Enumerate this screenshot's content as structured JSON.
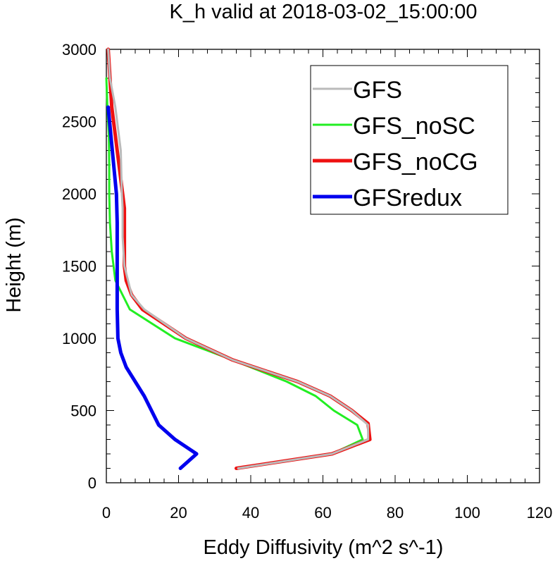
{
  "chart_data": {
    "type": "line",
    "title": "K_h valid at 2018-03-02_15:00:00",
    "xlabel": "Eddy Diffusivity (m^2 s^-1)",
    "ylabel": "Height (m)",
    "xlim": [
      0,
      120
    ],
    "ylim": [
      0,
      3000
    ],
    "xticks": [
      "0",
      "20",
      "40",
      "60",
      "80",
      "100",
      "120"
    ],
    "yticks": [
      "0",
      "500",
      "1000",
      "1500",
      "2000",
      "2500",
      "3000"
    ],
    "xtick_values": [
      0,
      20,
      40,
      60,
      80,
      100,
      120
    ],
    "ytick_values": [
      0,
      500,
      1000,
      1500,
      2000,
      2500,
      3000
    ],
    "legend_position": "top-right",
    "grid": false,
    "series": [
      {
        "name": "GFS",
        "color": "#bbbbbb",
        "x": [
          36.5,
          62.5,
          72.5,
          72.5,
          68,
          62,
          53,
          35,
          22,
          10.5,
          7,
          6,
          5,
          4.5,
          4.5,
          4.3,
          4.0,
          2.5,
          1.0,
          0.5
        ],
        "y": [
          100,
          200,
          300,
          400,
          500,
          600,
          700,
          850,
          1000,
          1200,
          1300,
          1400,
          1500,
          1700,
          1900,
          2000,
          2300,
          2600,
          2800,
          3000
        ]
      },
      {
        "name": "GFS_noSC",
        "color": "#22ee22",
        "x": [
          62.5,
          71,
          69.5,
          63,
          58,
          50,
          35,
          19,
          6.5,
          2.5,
          1.5,
          1.0,
          0.8,
          0.8,
          0.7,
          0.3,
          0.0
        ],
        "y": [
          200,
          300,
          400,
          500,
          600,
          700,
          850,
          1000,
          1200,
          1400,
          1600,
          1800,
          2000,
          2200,
          2400,
          2600,
          2800
        ]
      },
      {
        "name": "GFS_noCG",
        "color": "#ee1111",
        "x": [
          36,
          62.5,
          73,
          72.5,
          68,
          62,
          53,
          35,
          22,
          10,
          7,
          5.5,
          5,
          5,
          5,
          4.5,
          3.0,
          1.5,
          0.5
        ],
        "y": [
          100,
          200,
          300,
          410,
          500,
          600,
          700,
          850,
          1000,
          1200,
          1300,
          1400,
          1500,
          1700,
          1900,
          2000,
          2300,
          2600,
          3000
        ]
      },
      {
        "name": "GFSredux",
        "color": "#0000ee",
        "x": [
          20.5,
          25,
          19,
          14.5,
          10.5,
          5.5,
          4,
          3.2,
          3.0,
          3.0,
          3.0,
          2.8,
          0.5
        ],
        "y": [
          100,
          200,
          300,
          400,
          600,
          800,
          900,
          1000,
          1200,
          1500,
          1800,
          2000,
          2600
        ]
      }
    ]
  }
}
